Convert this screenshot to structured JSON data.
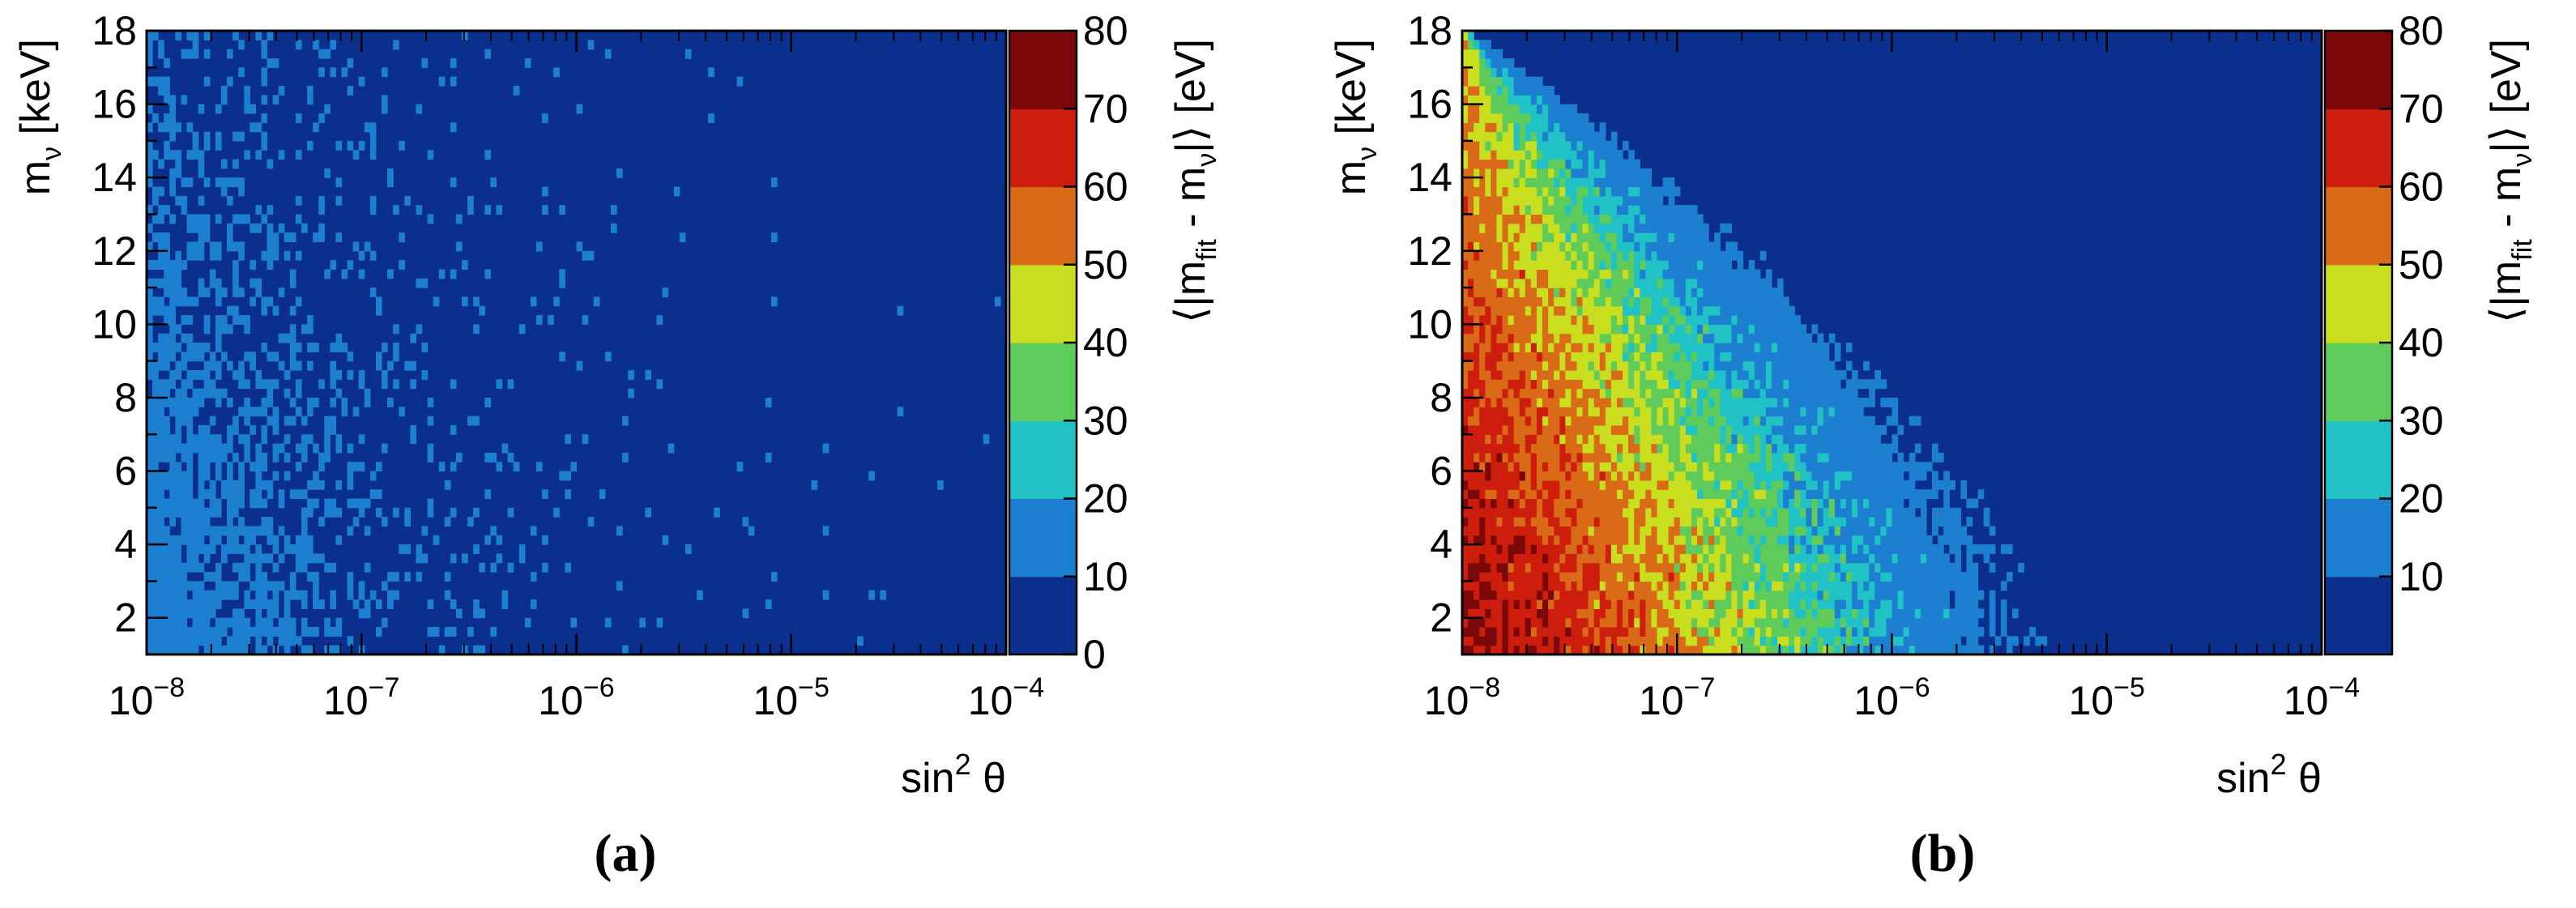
{
  "chart_data": [
    {
      "panel": "(a)",
      "type": "heatmap",
      "title": "",
      "xlabel": "sin² θ",
      "ylabel": "mν [keV]",
      "zlabel": "⟨|mfit - mν|⟩ [eV]",
      "x_scale": "log",
      "xlim": [
        1e-08,
        0.0001
      ],
      "ylim": [
        1,
        18
      ],
      "zlim": [
        0,
        80
      ],
      "x_ticks": [
        "10−8",
        "10−7",
        "10−6",
        "10−5",
        "10−4"
      ],
      "y_ticks": [
        "2",
        "4",
        "6",
        "8",
        "10",
        "12",
        "14",
        "16",
        "18"
      ],
      "z_ticks": [
        "0",
        "10",
        "20",
        "30",
        "40",
        "50",
        "60",
        "70",
        "80"
      ],
      "bins_x": 150,
      "bins_y": 68,
      "caption": "(a)",
      "region_description": "values near 10-20 eV only at small sin²θ (<~3e-7) and small mν; elsewhere 0-10 eV",
      "profile": {
        "peak": 14,
        "x_decay_decades": 0.65,
        "y_extent_keV": 15
      }
    },
    {
      "panel": "(b)",
      "type": "heatmap",
      "title": "",
      "xlabel": "sin² θ",
      "ylabel": "mν [keV]",
      "zlabel": "⟨|mfit - mν|⟩ [eV]",
      "x_scale": "log",
      "xlim": [
        1e-08,
        0.0001
      ],
      "ylim": [
        1,
        18
      ],
      "zlim": [
        0,
        80
      ],
      "x_ticks": [
        "10−8",
        "10−7",
        "10−6",
        "10−5",
        "10−4"
      ],
      "y_ticks": [
        "2",
        "4",
        "6",
        "8",
        "10",
        "12",
        "14",
        "16",
        "18"
      ],
      "z_ticks": [
        "10",
        "20",
        "30",
        "40",
        "50",
        "60",
        "70",
        "80"
      ],
      "bins_x": 150,
      "bins_y": 68,
      "caption": "(b)",
      "region_description": "values up to ~75 eV at sin²θ ≈ 1e-8 and low mν, decreasing toward larger sin²θ; boundary of non-zero region moves from ~3e-6 at mν≈1 keV to ~1e-8 at mν≈18 keV",
      "profile": {
        "peak": 75,
        "boundary_at_1keV": 3e-06,
        "boundary_at_18keV": 1e-08
      }
    }
  ],
  "colors": {
    "palette": [
      "#0b2f8d",
      "#1d7fcf",
      "#21c2c6",
      "#5fcb5b",
      "#c9de1f",
      "#d96a17",
      "#cc1d0d",
      "#7a0808"
    ],
    "frame": "#000000"
  }
}
